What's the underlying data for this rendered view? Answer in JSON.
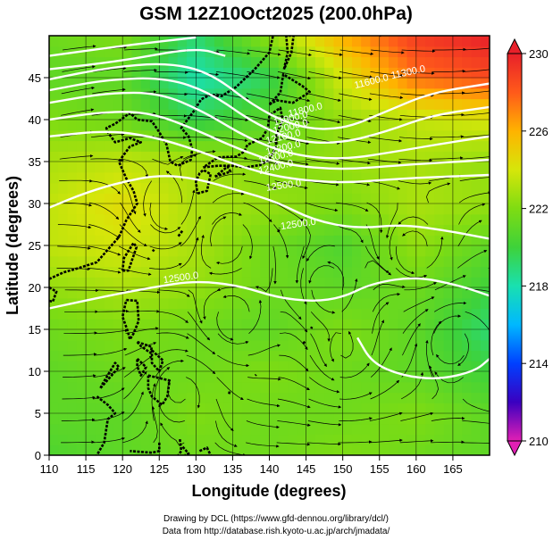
{
  "chart_data": {
    "type": "heatmap",
    "title": "GSM 12Z10Oct2025 (200.0hPa)",
    "xlabel": "Longitude (degrees)",
    "ylabel": "Latitude  (degrees)",
    "xlim": [
      110,
      170
    ],
    "ylim": [
      0,
      50
    ],
    "grid": true,
    "x_ticks": [
      "110",
      "115",
      "120",
      "125",
      "130",
      "135",
      "140",
      "145",
      "150",
      "155",
      "160",
      "165"
    ],
    "y_ticks": [
      "0",
      "5",
      "10",
      "15",
      "20",
      "25",
      "30",
      "35",
      "40",
      "45"
    ],
    "colorbar": {
      "min": 210,
      "max": 230,
      "ticks": [
        "210",
        "214",
        "218",
        "222",
        "226",
        "230"
      ],
      "colors": [
        "#e11fb4",
        "#3a00c0",
        "#0040ff",
        "#00b8ff",
        "#19e0b0",
        "#3ed23a",
        "#7fdc12",
        "#d6e60a",
        "#ffb300",
        "#ff5a1a",
        "#e8202a"
      ]
    },
    "contour_labels": [
      "11300.0",
      "11600.0",
      "11800.0",
      "11900.0",
      "12000.0",
      "12100.0",
      "12200.0",
      "12300.0",
      "12400.0",
      "12500.0",
      "12500.0",
      "12500.0"
    ],
    "contour_levels_m": [
      11300,
      11600,
      11800,
      11900,
      12000,
      12100,
      12200,
      12300,
      12400,
      12500
    ],
    "field_samples": {
      "lon": [
        110,
        120,
        130,
        140,
        150,
        160,
        170
      ],
      "lat": [
        50,
        45,
        40,
        35,
        30,
        25,
        20,
        15,
        10,
        5,
        0
      ],
      "values": [
        [
          221.5,
          222.0,
          219.0,
          222.5,
          226.0,
          229.0,
          230.0
        ],
        [
          221.0,
          221.0,
          218.0,
          219.5,
          224.0,
          227.5,
          228.5
        ],
        [
          222.0,
          221.5,
          219.5,
          221.0,
          222.5,
          223.5,
          224.0
        ],
        [
          223.0,
          223.5,
          223.0,
          222.0,
          222.5,
          223.0,
          222.5
        ],
        [
          223.5,
          224.5,
          223.0,
          222.5,
          222.0,
          223.0,
          222.5
        ],
        [
          223.5,
          224.0,
          223.0,
          221.5,
          220.5,
          222.5,
          221.0
        ],
        [
          222.5,
          223.0,
          222.5,
          221.5,
          221.0,
          221.5,
          220.0
        ],
        [
          221.5,
          222.0,
          221.5,
          221.0,
          222.0,
          221.0,
          219.0
        ],
        [
          221.0,
          221.5,
          221.5,
          222.0,
          221.5,
          221.0,
          220.0
        ],
        [
          221.0,
          221.0,
          222.0,
          221.5,
          221.5,
          222.0,
          221.0
        ],
        [
          220.5,
          221.0,
          221.5,
          221.5,
          222.0,
          221.5,
          221.0
        ]
      ]
    }
  },
  "credits": {
    "line1": "Drawing by DCL (https://www.gfd-dennou.org/library/dcl/)",
    "line2": "Data from http://database.rish.kyoto-u.ac.jp/arch/jmadata/"
  }
}
